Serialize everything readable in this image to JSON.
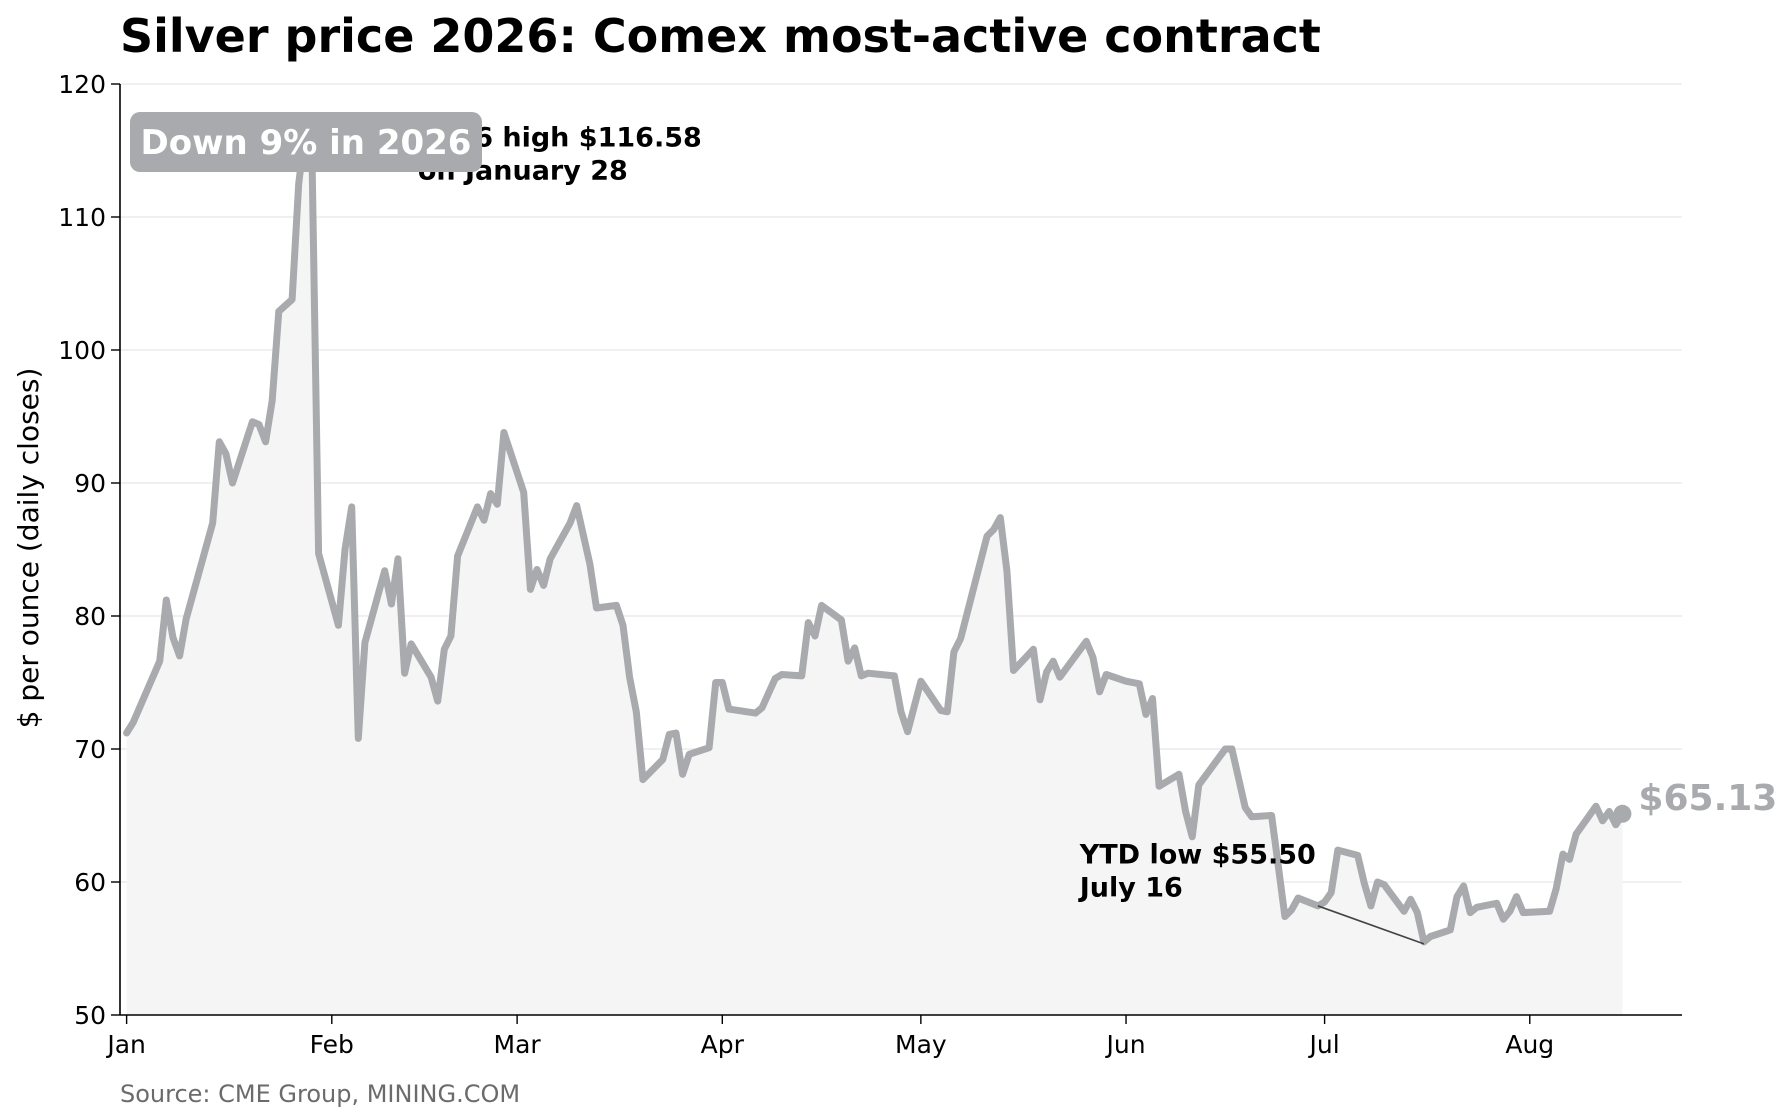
{
  "chart_data": {
    "type": "line",
    "title": "Silver price 2026: Comex most-active contract",
    "ylabel": "$ per ounce (daily closes)",
    "ylim": [
      50,
      120
    ],
    "yticks": [
      50,
      60,
      70,
      80,
      90,
      100,
      110,
      120
    ],
    "grid": "horizontal",
    "x_tick_labels": [
      "Jan",
      "Feb",
      "Mar",
      "Apr",
      "May",
      "Jun",
      "Jul",
      "Aug"
    ],
    "x_tick_dates": [
      "2026-01-01",
      "2026-02-01",
      "2026-03-01",
      "2026-04-01",
      "2026-05-01",
      "2026-06-01",
      "2026-07-01",
      "2026-08-01"
    ],
    "xlim": [
      "2025-12-31",
      "2026-08-24"
    ],
    "series": [
      {
        "color": "#a9aaad",
        "points": [
          [
            "2026-01-01",
            71.2
          ],
          [
            "2026-01-02",
            72.0
          ],
          [
            "2026-01-06",
            76.6
          ],
          [
            "2026-01-07",
            81.2
          ],
          [
            "2026-01-08",
            78.4
          ],
          [
            "2026-01-09",
            77.0
          ],
          [
            "2026-01-10",
            79.8
          ],
          [
            "2026-01-14",
            87.0
          ],
          [
            "2026-01-15",
            93.1
          ],
          [
            "2026-01-16",
            92.2
          ],
          [
            "2026-01-17",
            90.0
          ],
          [
            "2026-01-20",
            94.6
          ],
          [
            "2026-01-21",
            94.4
          ],
          [
            "2026-01-22",
            93.1
          ],
          [
            "2026-01-23",
            96.2
          ],
          [
            "2026-01-24",
            102.9
          ],
          [
            "2026-01-26",
            103.8
          ],
          [
            "2026-01-27",
            112.5
          ],
          [
            "2026-01-28",
            116.58
          ],
          [
            "2026-01-29",
            115.0
          ],
          [
            "2026-01-30",
            84.7
          ],
          [
            "2026-02-02",
            79.3
          ],
          [
            "2026-02-03",
            85.0
          ],
          [
            "2026-02-04",
            88.2
          ],
          [
            "2026-02-05",
            70.8
          ],
          [
            "2026-02-06",
            78.0
          ],
          [
            "2026-02-09",
            83.4
          ],
          [
            "2026-02-10",
            80.9
          ],
          [
            "2026-02-11",
            84.3
          ],
          [
            "2026-02-12",
            75.7
          ],
          [
            "2026-02-13",
            77.9
          ],
          [
            "2026-02-16",
            75.4
          ],
          [
            "2026-02-17",
            73.6
          ],
          [
            "2026-02-18",
            77.5
          ],
          [
            "2026-02-19",
            78.5
          ],
          [
            "2026-02-20",
            84.5
          ],
          [
            "2026-02-23",
            88.2
          ],
          [
            "2026-02-24",
            87.2
          ],
          [
            "2026-02-25",
            89.2
          ],
          [
            "2026-02-26",
            88.4
          ],
          [
            "2026-02-27",
            93.8
          ],
          [
            "2026-03-02",
            89.3
          ],
          [
            "2026-03-03",
            82.0
          ],
          [
            "2026-03-04",
            83.5
          ],
          [
            "2026-03-05",
            82.3
          ],
          [
            "2026-03-06",
            84.3
          ],
          [
            "2026-03-09",
            87.0
          ],
          [
            "2026-03-10",
            88.3
          ],
          [
            "2026-03-12",
            83.9
          ],
          [
            "2026-03-13",
            80.6
          ],
          [
            "2026-03-16",
            80.8
          ],
          [
            "2026-03-17",
            79.3
          ],
          [
            "2026-03-18",
            75.4
          ],
          [
            "2026-03-19",
            72.8
          ],
          [
            "2026-03-20",
            67.7
          ],
          [
            "2026-03-23",
            69.2
          ],
          [
            "2026-03-24",
            71.1
          ],
          [
            "2026-03-25",
            71.2
          ],
          [
            "2026-03-26",
            68.1
          ],
          [
            "2026-03-27",
            69.6
          ],
          [
            "2026-03-30",
            70.1
          ],
          [
            "2026-03-31",
            75.0
          ],
          [
            "2026-04-01",
            75.0
          ],
          [
            "2026-04-02",
            73.0
          ],
          [
            "2026-04-06",
            72.7
          ],
          [
            "2026-04-07",
            73.1
          ],
          [
            "2026-04-09",
            75.3
          ],
          [
            "2026-04-10",
            75.6
          ],
          [
            "2026-04-13",
            75.5
          ],
          [
            "2026-04-14",
            79.5
          ],
          [
            "2026-04-15",
            78.5
          ],
          [
            "2026-04-16",
            80.8
          ],
          [
            "2026-04-19",
            79.7
          ],
          [
            "2026-04-20",
            76.6
          ],
          [
            "2026-04-21",
            77.6
          ],
          [
            "2026-04-22",
            75.5
          ],
          [
            "2026-04-23",
            75.7
          ],
          [
            "2026-04-27",
            75.5
          ],
          [
            "2026-04-28",
            72.8
          ],
          [
            "2026-04-29",
            71.3
          ],
          [
            "2026-05-01",
            75.1
          ],
          [
            "2026-05-04",
            72.9
          ],
          [
            "2026-05-05",
            72.8
          ],
          [
            "2026-05-06",
            77.3
          ],
          [
            "2026-05-07",
            78.3
          ],
          [
            "2026-05-11",
            86.0
          ],
          [
            "2026-05-12",
            86.5
          ],
          [
            "2026-05-13",
            87.4
          ],
          [
            "2026-05-14",
            83.4
          ],
          [
            "2026-05-15",
            75.9
          ],
          [
            "2026-05-18",
            77.5
          ],
          [
            "2026-05-19",
            73.7
          ],
          [
            "2026-05-20",
            75.8
          ],
          [
            "2026-05-21",
            76.6
          ],
          [
            "2026-05-22",
            75.4
          ],
          [
            "2026-05-26",
            78.1
          ],
          [
            "2026-05-27",
            76.9
          ],
          [
            "2026-05-28",
            74.3
          ],
          [
            "2026-05-29",
            75.6
          ],
          [
            "2026-06-01",
            75.1
          ],
          [
            "2026-06-03",
            74.9
          ],
          [
            "2026-06-04",
            72.6
          ],
          [
            "2026-06-05",
            73.8
          ],
          [
            "2026-06-06",
            67.2
          ],
          [
            "2026-06-09",
            68.1
          ],
          [
            "2026-06-10",
            65.3
          ],
          [
            "2026-06-11",
            63.4
          ],
          [
            "2026-06-12",
            67.3
          ],
          [
            "2026-06-16",
            70.0
          ],
          [
            "2026-06-17",
            70.0
          ],
          [
            "2026-06-19",
            65.6
          ],
          [
            "2026-06-20",
            64.9
          ],
          [
            "2026-06-23",
            65.0
          ],
          [
            "2026-06-24",
            61.2
          ],
          [
            "2026-06-25",
            57.4
          ],
          [
            "2026-06-26",
            57.9
          ],
          [
            "2026-06-27",
            58.8
          ],
          [
            "2026-06-30",
            58.2
          ],
          [
            "2026-07-01",
            58.5
          ],
          [
            "2026-07-02",
            59.2
          ],
          [
            "2026-07-03",
            62.4
          ],
          [
            "2026-07-06",
            62.0
          ],
          [
            "2026-07-07",
            59.9
          ],
          [
            "2026-07-08",
            58.2
          ],
          [
            "2026-07-09",
            60.0
          ],
          [
            "2026-07-10",
            59.8
          ],
          [
            "2026-07-13",
            57.8
          ],
          [
            "2026-07-14",
            58.7
          ],
          [
            "2026-07-15",
            57.7
          ],
          [
            "2026-07-16",
            55.5
          ],
          [
            "2026-07-17",
            55.9
          ],
          [
            "2026-07-20",
            56.4
          ],
          [
            "2026-07-21",
            58.9
          ],
          [
            "2026-07-22",
            59.7
          ],
          [
            "2026-07-23",
            57.7
          ],
          [
            "2026-07-24",
            58.1
          ],
          [
            "2026-07-27",
            58.4
          ],
          [
            "2026-07-28",
            57.2
          ],
          [
            "2026-07-29",
            57.8
          ],
          [
            "2026-07-30",
            58.9
          ],
          [
            "2026-07-31",
            57.7
          ],
          [
            "2026-08-04",
            57.8
          ],
          [
            "2026-08-05",
            59.5
          ],
          [
            "2026-08-06",
            62.1
          ],
          [
            "2026-08-07",
            61.7
          ],
          [
            "2026-08-08",
            63.6
          ],
          [
            "2026-08-11",
            65.7
          ],
          [
            "2026-08-12",
            64.6
          ],
          [
            "2026-08-13",
            65.3
          ],
          [
            "2026-08-14",
            64.3
          ],
          [
            "2026-08-15",
            65.13
          ]
        ]
      }
    ],
    "annotations": {
      "high": {
        "lines": [
          "2026 high $116.58",
          "on January 28"
        ],
        "date": "2026-01-28",
        "value": 116.58
      },
      "low": {
        "lines": [
          "YTD low $55.50",
          "July 16"
        ],
        "date": "2026-07-16",
        "value": 55.5
      }
    },
    "badge": "Down 9% in 2026",
    "last_value_label": "$65.13",
    "source": "Source: CME Group, MINING.COM"
  }
}
